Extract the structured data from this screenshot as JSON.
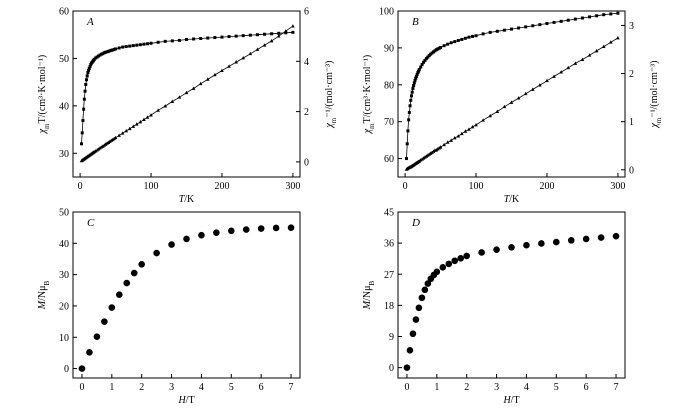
{
  "chart_data": [
    {
      "panel": "A",
      "type": "scatter",
      "panel_label": "A",
      "xlabel": "T/K",
      "ylabel_left": "χmT/(cm³·K·mol⁻¹)",
      "ylabel_right": "χm⁻¹/(mol·cm⁻³)",
      "xlim": [
        -10,
        310
      ],
      "ylim_left": [
        25,
        60
      ],
      "ylim_right": [
        -0.6,
        6.0
      ],
      "xticks": [
        0,
        100,
        200,
        300
      ],
      "yticks_left": [
        30,
        40,
        50,
        60
      ],
      "yticks_right": [
        0,
        2,
        4,
        6
      ],
      "grid": false,
      "series": [
        {
          "axis": "left",
          "marker": "square",
          "x": [
            2,
            3,
            4,
            5,
            6,
            7,
            8,
            9,
            10,
            11,
            12,
            13,
            14,
            15,
            16,
            17,
            18,
            19,
            20,
            22,
            24,
            26,
            28,
            30,
            32,
            34,
            36,
            38,
            40,
            42,
            44,
            46,
            48,
            50,
            55,
            60,
            65,
            70,
            75,
            80,
            85,
            90,
            95,
            100,
            110,
            120,
            130,
            140,
            150,
            160,
            170,
            180,
            190,
            200,
            210,
            220,
            230,
            240,
            250,
            260,
            270,
            280,
            290,
            300
          ],
          "y": [
            32.0,
            34.3,
            36.9,
            39.3,
            41.4,
            43.1,
            44.5,
            45.5,
            46.3,
            47.0,
            47.5,
            47.9,
            48.3,
            48.7,
            49.0,
            49.2,
            49.4,
            49.6,
            49.8,
            50.1,
            50.3,
            50.5,
            50.7,
            50.9,
            51.0,
            51.2,
            51.3,
            51.4,
            51.5,
            51.6,
            51.7,
            51.8,
            51.9,
            52.0,
            52.2,
            52.4,
            52.5,
            52.6,
            52.7,
            52.8,
            52.9,
            53.0,
            53.1,
            53.2,
            53.4,
            53.6,
            53.7,
            53.8,
            54.0,
            54.1,
            54.2,
            54.3,
            54.4,
            54.5,
            54.6,
            54.7,
            54.8,
            54.9,
            55.0,
            55.1,
            55.2,
            55.3,
            55.4,
            55.5
          ]
        },
        {
          "axis": "right",
          "marker": "triangle",
          "x": [
            2,
            3,
            4,
            5,
            6,
            7,
            8,
            9,
            10,
            11,
            12,
            13,
            14,
            15,
            16,
            17,
            18,
            19,
            20,
            22,
            24,
            26,
            28,
            30,
            32,
            34,
            36,
            38,
            40,
            42,
            44,
            46,
            48,
            50,
            55,
            60,
            65,
            70,
            75,
            80,
            85,
            90,
            95,
            100,
            110,
            120,
            130,
            140,
            150,
            160,
            170,
            180,
            190,
            200,
            210,
            220,
            230,
            240,
            250,
            260,
            270,
            280,
            290,
            300
          ],
          "y": [
            0.04,
            0.06,
            0.08,
            0.1,
            0.12,
            0.14,
            0.16,
            0.18,
            0.2,
            0.22,
            0.24,
            0.26,
            0.28,
            0.3,
            0.32,
            0.34,
            0.36,
            0.38,
            0.4,
            0.43,
            0.47,
            0.51,
            0.55,
            0.59,
            0.62,
            0.66,
            0.7,
            0.74,
            0.77,
            0.81,
            0.85,
            0.88,
            0.92,
            0.96,
            1.05,
            1.14,
            1.23,
            1.32,
            1.41,
            1.5,
            1.59,
            1.68,
            1.77,
            1.86,
            2.05,
            2.22,
            2.4,
            2.57,
            2.75,
            2.92,
            3.11,
            3.28,
            3.46,
            3.63,
            3.8,
            3.97,
            4.13,
            4.3,
            4.47,
            4.64,
            4.81,
            5.0,
            5.2,
            5.4
          ]
        }
      ]
    },
    {
      "panel": "B",
      "type": "scatter",
      "panel_label": "B",
      "xlabel": "T/K",
      "ylabel_left": "χmT/(cm³·K·mol⁻¹)",
      "ylabel_right": "χm⁻¹/(mol·cm⁻³)",
      "xlim": [
        -10,
        310
      ],
      "ylim_left": [
        55,
        100
      ],
      "ylim_right": [
        -0.15,
        3.3
      ],
      "xticks": [
        0,
        100,
        200,
        300
      ],
      "yticks_left": [
        60,
        70,
        80,
        90,
        100
      ],
      "yticks_right": [
        0.0,
        1.0,
        2.0,
        3.0
      ],
      "grid": false,
      "series": [
        {
          "axis": "left",
          "marker": "square",
          "x": [
            2,
            3,
            4,
            5,
            6,
            7,
            8,
            9,
            10,
            11,
            12,
            13,
            14,
            15,
            16,
            17,
            18,
            19,
            20,
            22,
            24,
            26,
            28,
            30,
            32,
            34,
            36,
            38,
            40,
            42,
            44,
            46,
            48,
            50,
            55,
            60,
            65,
            70,
            75,
            80,
            85,
            90,
            95,
            100,
            110,
            120,
            130,
            140,
            150,
            160,
            170,
            180,
            190,
            200,
            210,
            220,
            230,
            240,
            250,
            260,
            270,
            280,
            290,
            300
          ],
          "y": [
            60.0,
            64.0,
            67.5,
            70.5,
            72.5,
            74.3,
            75.8,
            77.0,
            78.0,
            79.0,
            79.8,
            80.5,
            81.2,
            81.8,
            82.3,
            82.8,
            83.3,
            83.7,
            84.1,
            84.8,
            85.5,
            86.1,
            86.6,
            87.1,
            87.5,
            87.9,
            88.3,
            88.6,
            88.9,
            89.2,
            89.5,
            89.7,
            89.9,
            90.1,
            90.6,
            91.0,
            91.4,
            91.7,
            92.0,
            92.3,
            92.6,
            92.9,
            93.1,
            93.3,
            93.8,
            94.2,
            94.5,
            94.8,
            95.1,
            95.4,
            95.7,
            96.0,
            96.3,
            96.6,
            96.9,
            97.2,
            97.5,
            97.8,
            98.1,
            98.4,
            98.7,
            99.0,
            99.2,
            99.4
          ]
        },
        {
          "axis": "right",
          "marker": "triangle",
          "x": [
            2,
            3,
            4,
            5,
            6,
            7,
            8,
            9,
            10,
            11,
            12,
            13,
            14,
            15,
            16,
            17,
            18,
            19,
            20,
            22,
            24,
            26,
            28,
            30,
            32,
            34,
            36,
            38,
            40,
            42,
            44,
            46,
            48,
            50,
            55,
            60,
            65,
            70,
            75,
            80,
            85,
            90,
            95,
            100,
            110,
            120,
            130,
            140,
            150,
            160,
            170,
            180,
            190,
            200,
            210,
            220,
            230,
            240,
            250,
            260,
            270,
            280,
            290,
            300
          ],
          "y": [
            0.01,
            0.02,
            0.03,
            0.04,
            0.05,
            0.05,
            0.06,
            0.07,
            0.08,
            0.09,
            0.1,
            0.11,
            0.12,
            0.13,
            0.14,
            0.15,
            0.16,
            0.17,
            0.18,
            0.2,
            0.22,
            0.24,
            0.26,
            0.28,
            0.3,
            0.32,
            0.34,
            0.36,
            0.38,
            0.4,
            0.41,
            0.43,
            0.45,
            0.47,
            0.52,
            0.57,
            0.61,
            0.66,
            0.7,
            0.75,
            0.8,
            0.84,
            0.89,
            0.93,
            1.03,
            1.12,
            1.21,
            1.31,
            1.4,
            1.49,
            1.58,
            1.67,
            1.76,
            1.85,
            1.94,
            2.03,
            2.12,
            2.21,
            2.29,
            2.38,
            2.47,
            2.56,
            2.65,
            2.74
          ]
        }
      ]
    },
    {
      "panel": "C",
      "type": "scatter",
      "panel_label": "C",
      "xlabel": "H/T",
      "ylabel": "M/NμB",
      "xlim": [
        -0.3,
        7.3
      ],
      "ylim": [
        -3,
        50
      ],
      "xticks": [
        0,
        1,
        2,
        3,
        4,
        5,
        6,
        7
      ],
      "yticks": [
        0,
        10,
        20,
        30,
        40,
        50
      ],
      "grid": false,
      "series": [
        {
          "marker": "circle",
          "x": [
            0.0,
            0.25,
            0.5,
            0.75,
            1.0,
            1.25,
            1.5,
            1.75,
            2.0,
            2.5,
            3.0,
            3.5,
            4.0,
            4.5,
            5.0,
            5.5,
            6.0,
            6.5,
            7.0
          ],
          "y": [
            0.0,
            5.2,
            10.2,
            15.0,
            19.5,
            23.6,
            27.3,
            30.5,
            33.3,
            36.9,
            39.6,
            41.4,
            42.6,
            43.4,
            44.0,
            44.4,
            44.7,
            44.9,
            45.0
          ]
        }
      ]
    },
    {
      "panel": "D",
      "type": "scatter",
      "panel_label": "D",
      "xlabel": "H/T",
      "ylabel": "M/NμB",
      "xlim": [
        -0.3,
        7.3
      ],
      "ylim": [
        -3,
        45
      ],
      "xticks": [
        0,
        1,
        2,
        3,
        4,
        5,
        6,
        7
      ],
      "yticks": [
        0,
        9,
        18,
        27,
        36,
        45
      ],
      "grid": false,
      "series": [
        {
          "marker": "circle",
          "x": [
            0.0,
            0.1,
            0.2,
            0.3,
            0.4,
            0.5,
            0.6,
            0.7,
            0.8,
            0.9,
            1.0,
            1.2,
            1.4,
            1.6,
            1.8,
            2.0,
            2.5,
            3.0,
            3.5,
            4.0,
            4.5,
            5.0,
            5.5,
            6.0,
            6.5,
            7.0
          ],
          "y": [
            0.0,
            5.0,
            9.8,
            13.9,
            17.3,
            20.2,
            22.5,
            24.3,
            25.7,
            26.8,
            27.7,
            29.0,
            30.0,
            30.9,
            31.6,
            32.3,
            33.3,
            34.1,
            34.8,
            35.4,
            35.9,
            36.3,
            36.8,
            37.2,
            37.6,
            38.0
          ]
        }
      ]
    }
  ]
}
